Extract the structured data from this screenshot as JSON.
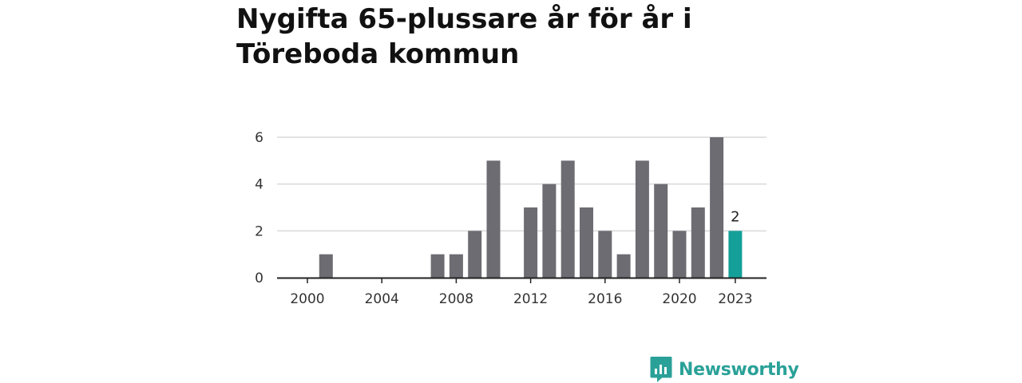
{
  "title": "Nygifta 65-plussare år för år i Töreboda kommun",
  "brand": {
    "name": "Newsworthy",
    "color": "#2aa198",
    "icon": "newsworthy-logo-icon"
  },
  "colors": {
    "bar": "#6d6c72",
    "highlight": "#14a099",
    "grid": "#d9d9d9",
    "axis": "#222222"
  },
  "chart_data": {
    "type": "bar",
    "title": "Nygifta 65-plussare år för år i Töreboda kommun",
    "xlabel": "",
    "ylabel": "",
    "categories": [
      2000,
      2001,
      2002,
      2003,
      2004,
      2005,
      2006,
      2007,
      2008,
      2009,
      2010,
      2011,
      2012,
      2013,
      2014,
      2015,
      2016,
      2017,
      2018,
      2019,
      2020,
      2021,
      2022,
      2023
    ],
    "values": [
      0,
      1,
      0,
      0,
      0,
      0,
      0,
      1,
      1,
      2,
      5,
      0,
      3,
      4,
      5,
      3,
      2,
      1,
      5,
      4,
      2,
      3,
      6,
      2
    ],
    "highlight_category": 2023,
    "highlight_label": "2",
    "ylim": [
      0,
      6
    ],
    "yticks": [
      0,
      2,
      4,
      6
    ],
    "xticks": [
      2000,
      2004,
      2008,
      2012,
      2016,
      2020,
      2023
    ],
    "grid": true,
    "legend": "none"
  }
}
